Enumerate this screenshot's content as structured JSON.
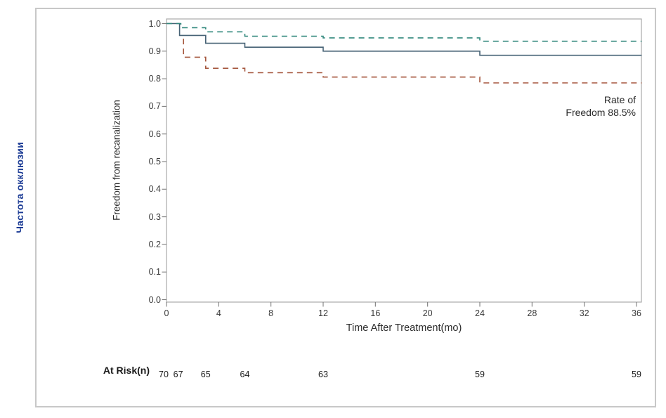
{
  "frame": {
    "border_color": "#c8c8c8"
  },
  "outer_label": {
    "text": "Частота окклюзии",
    "color": "#1a3a94"
  },
  "chart_data": {
    "type": "line",
    "subtype": "kaplan-meier-step",
    "title": "",
    "xlabel": "Time After Treatment(mo)",
    "ylabel": "Freedom from recanalization",
    "xlim": [
      0,
      36
    ],
    "ylim": [
      0.0,
      1.0
    ],
    "grid": "off",
    "legend": "none",
    "x_ticks": [
      0,
      4,
      8,
      12,
      16,
      20,
      24,
      28,
      32,
      36
    ],
    "y_ticks": [
      {
        "label": "1.0",
        "value": 1.0
      },
      {
        "label": "0.9",
        "value": 0.9
      },
      {
        "label": "0.8",
        "value": 0.8
      },
      {
        "label": "0.7",
        "value": 0.7
      },
      {
        "label": "0.6",
        "value": 0.6
      },
      {
        "label": "0.5",
        "value": 0.5
      },
      {
        "label": "0.4",
        "value": 0.4
      },
      {
        "label": "0.3",
        "value": 0.3
      },
      {
        "label": "0.2",
        "value": 0.2
      },
      {
        "label": "0.1",
        "value": 0.1
      },
      {
        "label": "0.0",
        "value": 0.0
      }
    ],
    "annotation": {
      "lines": [
        "Rate of",
        "Freedom 88.5%"
      ]
    },
    "series": [
      {
        "name": "freedom-from-recanalization",
        "style": "solid",
        "color": "#466275",
        "points": [
          [
            0,
            1.0
          ],
          [
            1,
            1.0
          ],
          [
            1,
            0.957
          ],
          [
            3,
            0.957
          ],
          [
            3,
            0.9286
          ],
          [
            6,
            0.9286
          ],
          [
            6,
            0.9143
          ],
          [
            12,
            0.9143
          ],
          [
            12,
            0.9
          ],
          [
            24,
            0.9
          ],
          [
            24,
            0.885
          ],
          [
            36.4,
            0.885
          ]
        ]
      },
      {
        "name": "upper-95-ci",
        "style": "dashed",
        "color": "#33897e",
        "points": [
          [
            0,
            1.0
          ],
          [
            1.1,
            1.0
          ],
          [
            1.1,
            0.985
          ],
          [
            3,
            0.985
          ],
          [
            3,
            0.97
          ],
          [
            6,
            0.97
          ],
          [
            6,
            0.954
          ],
          [
            12,
            0.954
          ],
          [
            12,
            0.948
          ],
          [
            24,
            0.948
          ],
          [
            24,
            0.936
          ],
          [
            36.4,
            0.936
          ]
        ]
      },
      {
        "name": "lower-95-ci",
        "style": "dashed",
        "color": "#a5573e",
        "points": [
          [
            1.3,
            0.945
          ],
          [
            1.3,
            0.878
          ],
          [
            3,
            0.878
          ],
          [
            3,
            0.838
          ],
          [
            6,
            0.838
          ],
          [
            6,
            0.822
          ],
          [
            12,
            0.822
          ],
          [
            12,
            0.806
          ],
          [
            24,
            0.806
          ],
          [
            24,
            0.785
          ],
          [
            36.4,
            0.785
          ]
        ]
      }
    ],
    "at_risk": {
      "label": "At Risk(n)",
      "times": [
        0,
        1,
        3,
        6,
        12,
        24,
        36
      ],
      "counts": [
        70,
        67,
        65,
        64,
        63,
        59,
        59
      ],
      "x_offsets": [
        -4,
        -2,
        0,
        0,
        0,
        0,
        0
      ]
    }
  }
}
